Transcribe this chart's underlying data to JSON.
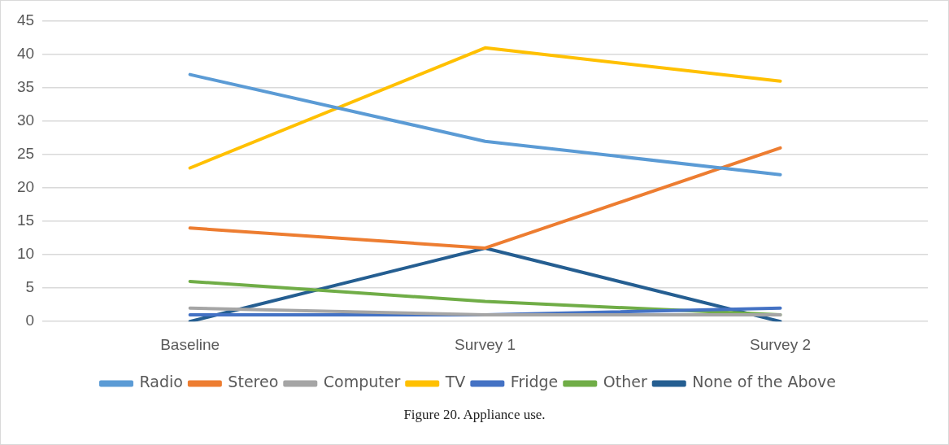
{
  "chart_data": {
    "type": "line",
    "categories": [
      "Baseline",
      "Survey 1",
      "Survey 2"
    ],
    "series": [
      {
        "name": "Radio",
        "color": "#5b9bd5",
        "values": [
          37,
          27,
          22
        ]
      },
      {
        "name": "Stereo",
        "color": "#ed7d31",
        "values": [
          14,
          11,
          26
        ]
      },
      {
        "name": "Computer",
        "color": "#a5a5a5",
        "values": [
          2,
          1,
          1
        ]
      },
      {
        "name": "TV",
        "color": "#ffc000",
        "values": [
          23,
          41,
          36
        ]
      },
      {
        "name": "Fridge",
        "color": "#4472c4",
        "values": [
          1,
          1,
          2
        ]
      },
      {
        "name": "Other",
        "color": "#70ad47",
        "values": [
          6,
          3,
          1
        ]
      },
      {
        "name": "None of the Above",
        "color": "#255e91",
        "values": [
          0,
          11,
          0
        ]
      }
    ],
    "ylim": [
      0,
      45
    ],
    "yticks": [
      0,
      5,
      10,
      15,
      20,
      25,
      30,
      35,
      40,
      45
    ],
    "grid": "y",
    "legend": "bottom",
    "marker": "none",
    "line_style": "solid",
    "annotations": [
      "Figure 20. Appliance use."
    ]
  }
}
